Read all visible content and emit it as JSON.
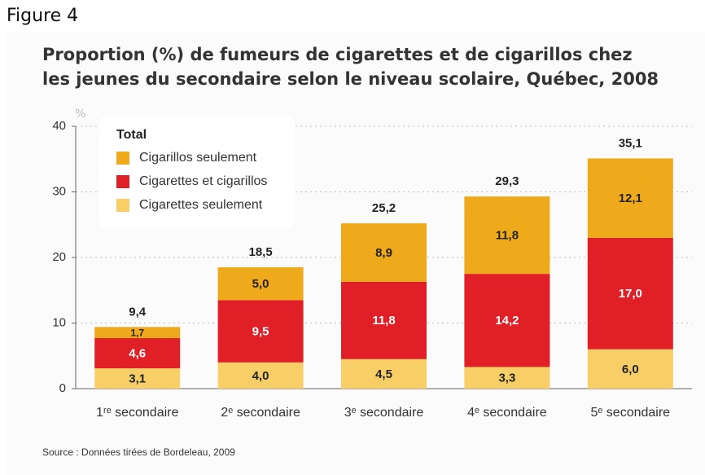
{
  "figure_label": "Figure 4",
  "chart_data": {
    "type": "stacked_bar",
    "title": [
      "Proportion (%) de fumeurs de cigarettes et de cigarillos chez",
      "les jeunes du secondaire selon le niveau scolaire, Québec, 2008"
    ],
    "y_label": "%",
    "legend_title": "Total",
    "categories": [
      "1ʳᵉ secondaire",
      "2ᵉ secondaire",
      "3ᵉ secondaire",
      "4ᵉ secondaire",
      "5ᵉ secondaire"
    ],
    "series": [
      {
        "name": "Cigarettes seulement",
        "color": "#f8cf66",
        "values": [
          3.1,
          4.0,
          4.5,
          3.3,
          6.0
        ],
        "value_labels": [
          "3,1",
          "4,0",
          "4,5",
          "3,3",
          "6,0"
        ]
      },
      {
        "name": "Cigarettes et cigarillos",
        "color": "#e01f26",
        "values": [
          4.6,
          9.5,
          11.8,
          14.2,
          17.0
        ],
        "value_labels": [
          "4,6",
          "9,5",
          "11,8",
          "14,2",
          "17,0"
        ]
      },
      {
        "name": "Cigarillos seulement",
        "color": "#eeaa1a",
        "values": [
          1.7,
          5.0,
          8.9,
          11.8,
          12.1
        ],
        "value_labels": [
          "1,7",
          "5,0",
          "8,9",
          "11,8",
          "12,1"
        ]
      }
    ],
    "totals": [
      9.4,
      18.5,
      25.2,
      29.3,
      35.1
    ],
    "total_labels": [
      "9,4",
      "18,5",
      "25,2",
      "29,3",
      "35,1"
    ],
    "ylim": [
      0,
      40
    ],
    "yticks": [
      0,
      10,
      20,
      30,
      40
    ],
    "grid": true,
    "source": "Source : Données tirées de Bordeleau, 2009"
  }
}
